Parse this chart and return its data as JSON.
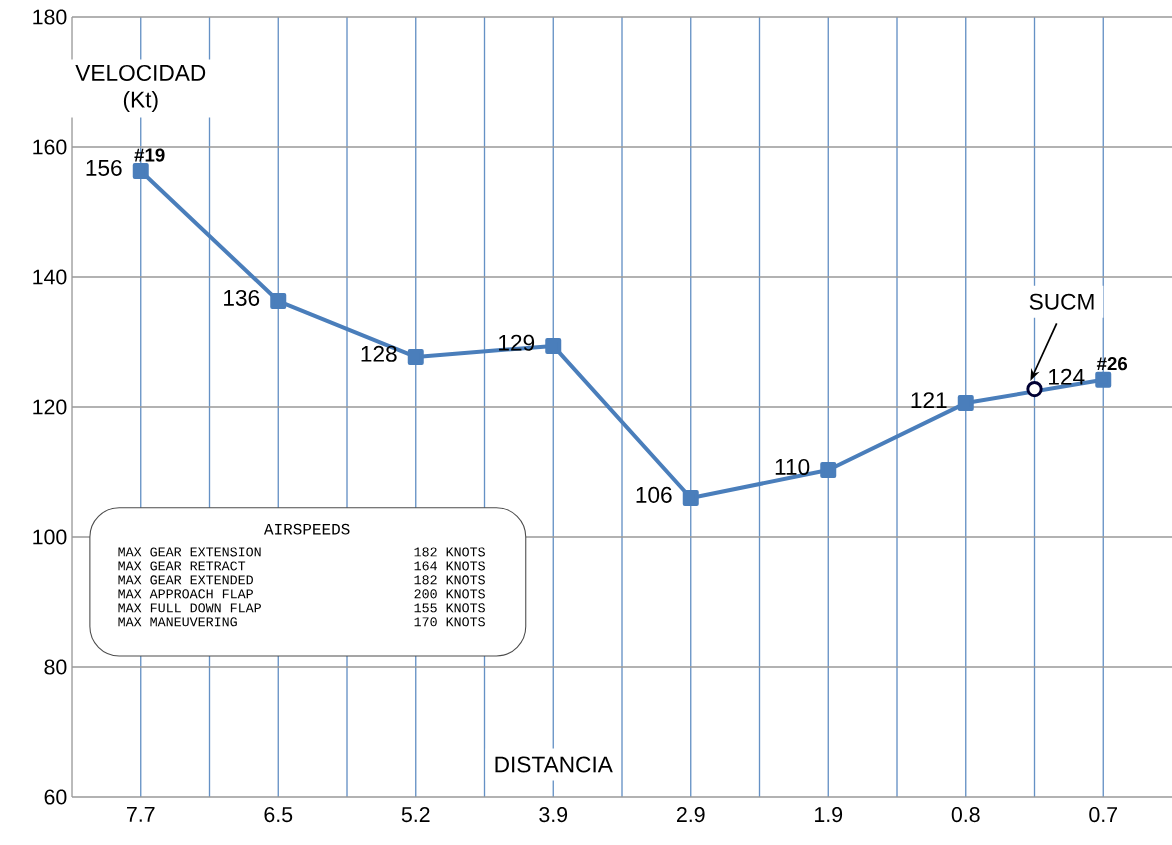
{
  "chart_data": {
    "type": "line",
    "xlabel": "DISTANCIA",
    "ylabel": "VELOCIDAD (Kt)",
    "categories": [
      "7.7",
      "6.5",
      "5.2",
      "3.9",
      "2.9",
      "1.9",
      "0.8",
      "0.7"
    ],
    "values": [
      156.3,
      136.3,
      127.7,
      129.4,
      106.0,
      110.3,
      120.6,
      124.2
    ],
    "value_labels": [
      "156",
      "136",
      "128",
      "129",
      "106",
      "110",
      "121",
      "124"
    ],
    "color": "#4a7ebb",
    "marker": "square",
    "line_style": "solid",
    "grid": true,
    "ylim": [
      60,
      180
    ],
    "yticks": [
      60,
      80,
      100,
      120,
      140,
      160,
      180
    ],
    "annotations": [
      {
        "text": "#19",
        "x": "7.7",
        "y": 156.3
      },
      {
        "text": "#26",
        "x": "0.7",
        "y": 124.2
      },
      "SUCM",
      "AIRSPEEDS",
      "MAX GEAR EXTENSION",
      "182 KNOTS",
      "MAX GEAR RETRACT",
      "164 KNOTS",
      "MAX GEAR EXTENDED",
      "182 KNOTS",
      "MAX APPROACH FLAP",
      "200 KNOTS",
      "MAX FULL DOWN FLAP",
      "155 KNOTS",
      "MAX MANEUVERING",
      "170 KNOTS"
    ]
  }
}
